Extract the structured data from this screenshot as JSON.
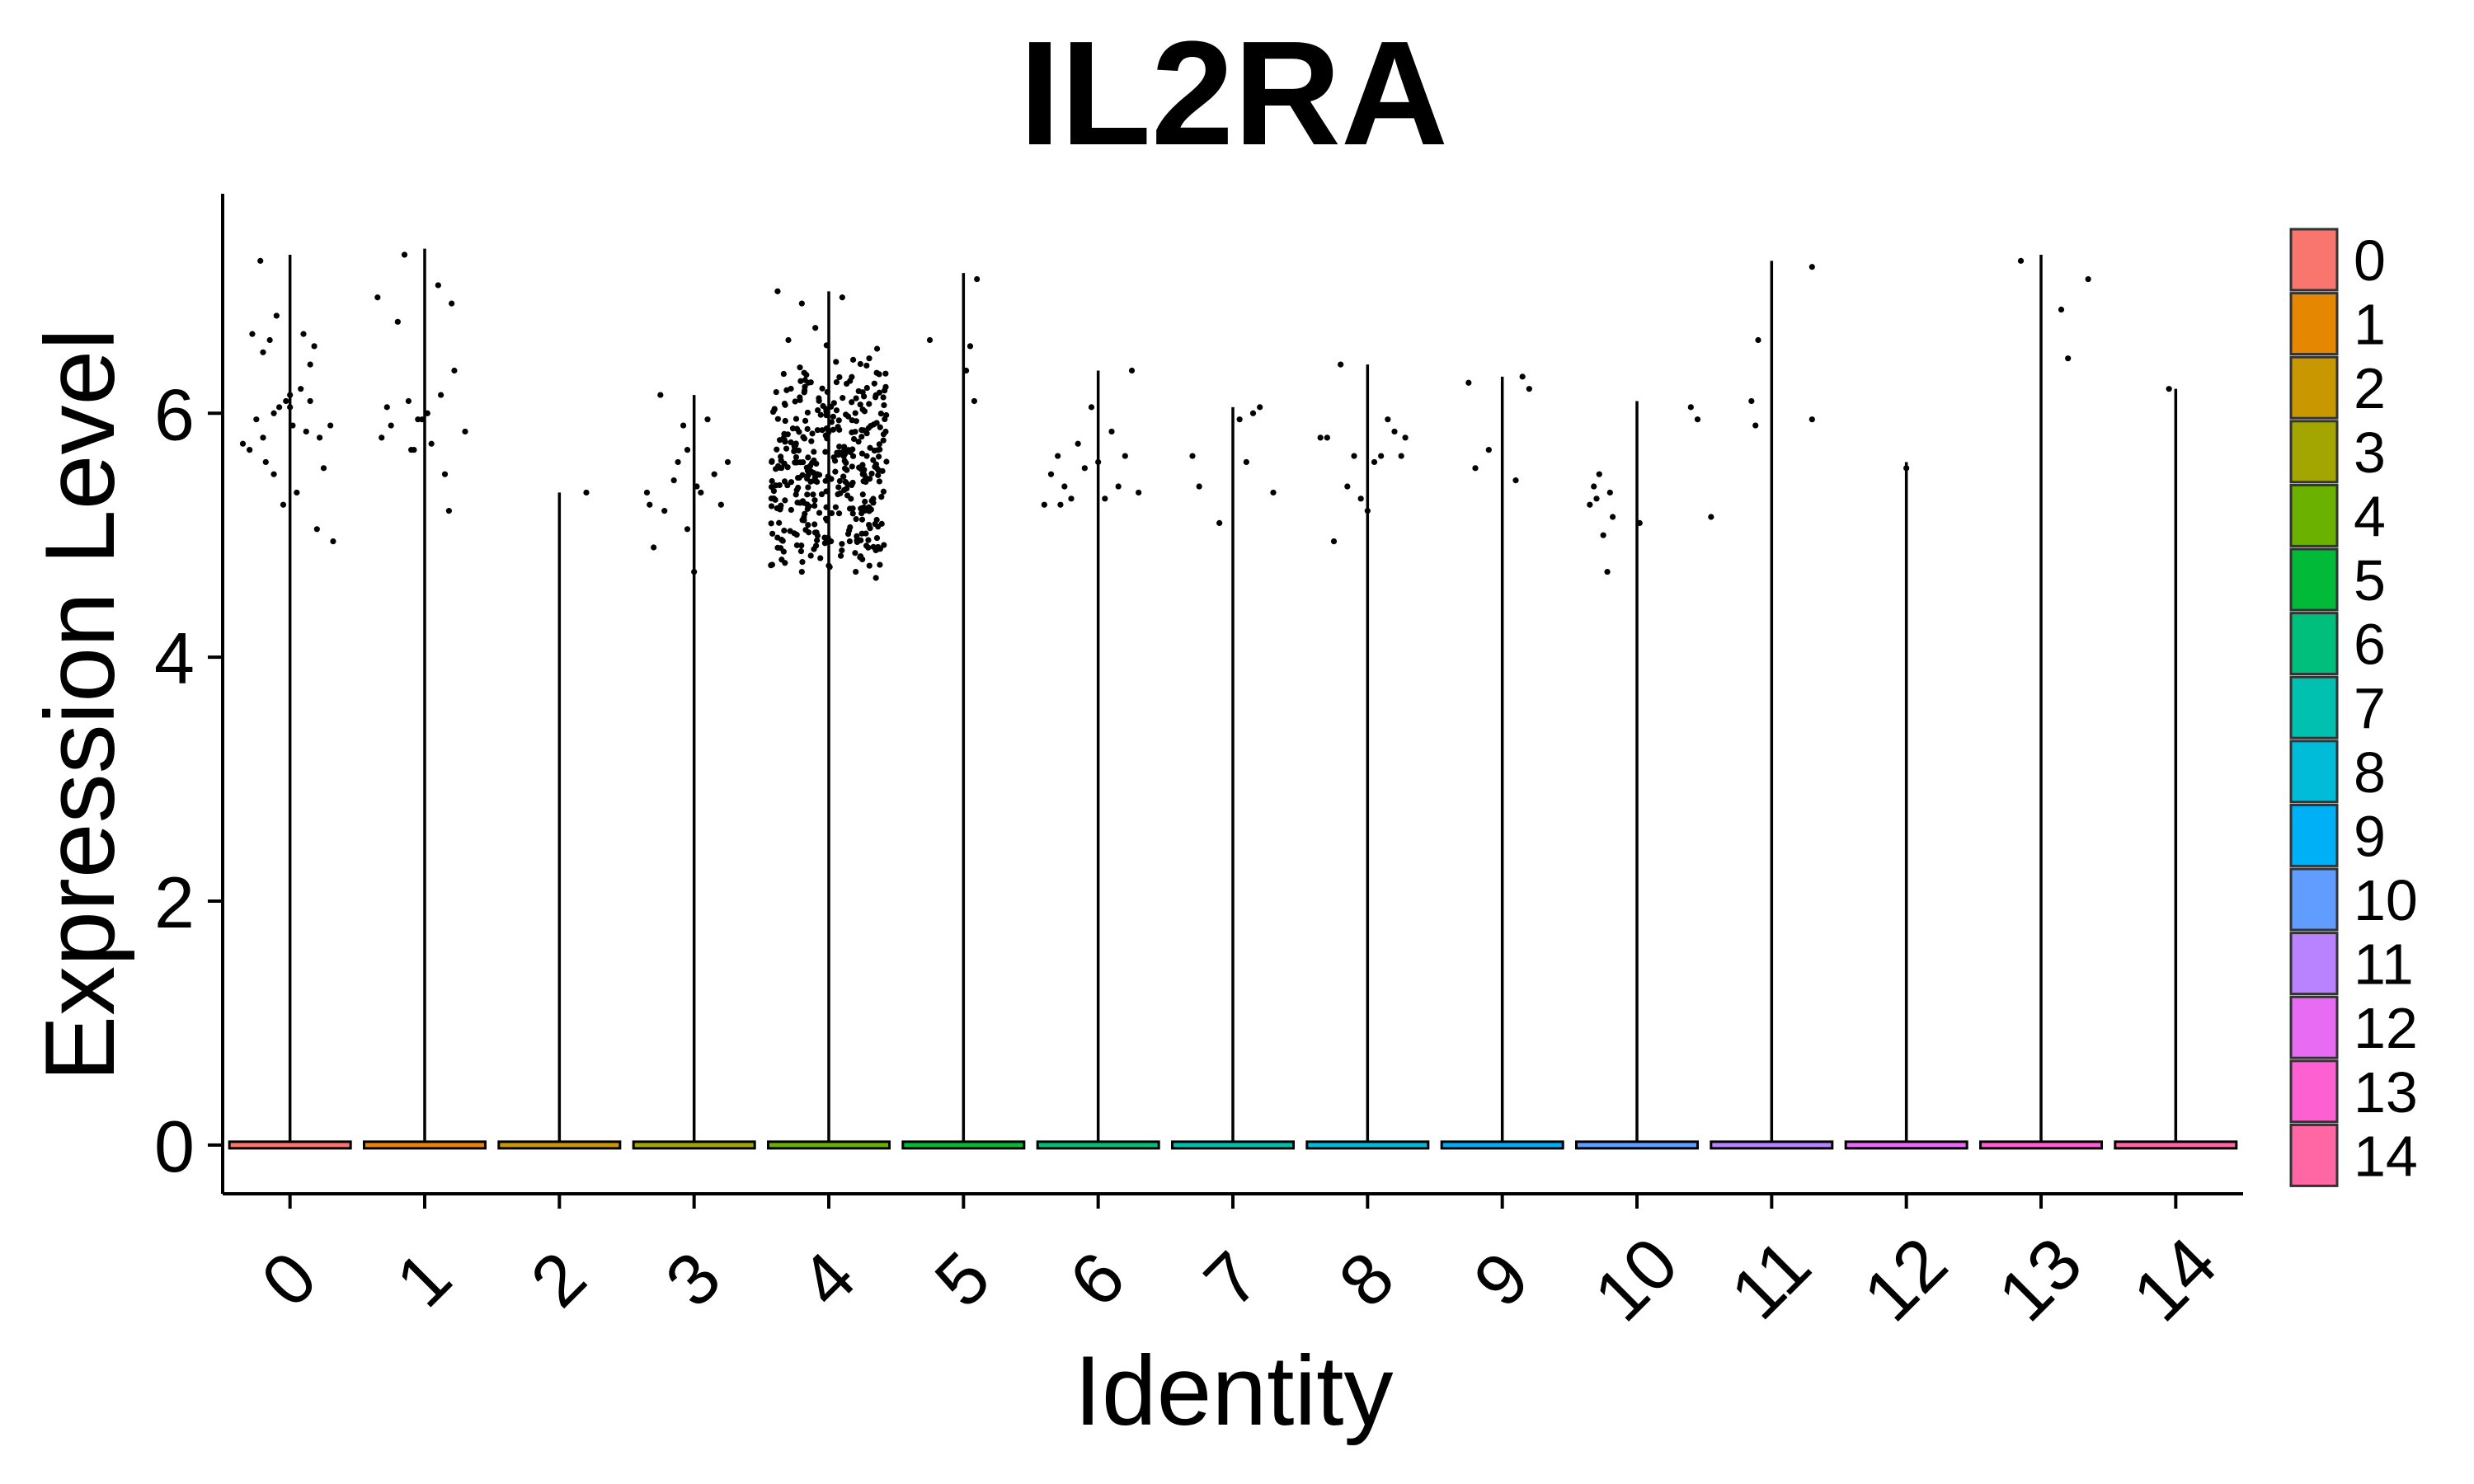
{
  "chart_data": {
    "type": "violin",
    "title": "IL2RA",
    "xlabel": "Identity",
    "ylabel": "Expression Level",
    "ylim": [
      -0.4,
      7.8
    ],
    "yticks": [
      0,
      2,
      4,
      6
    ],
    "categories": [
      "0",
      "1",
      "2",
      "3",
      "4",
      "5",
      "6",
      "7",
      "8",
      "9",
      "10",
      "11",
      "12",
      "13",
      "14"
    ],
    "colors": [
      "#F8766D",
      "#E58700",
      "#C99800",
      "#A3A500",
      "#6BB100",
      "#00BA38",
      "#00BF7D",
      "#00C0AF",
      "#00BCD8",
      "#00B0F6",
      "#619CFF",
      "#B983FF",
      "#E76BF3",
      "#FD61D1",
      "#FF67A4"
    ],
    "max_expression": [
      7.3,
      7.35,
      5.35,
      6.15,
      7.0,
      7.15,
      6.35,
      6.05,
      6.4,
      6.3,
      6.1,
      7.25,
      5.6,
      7.3,
      6.2
    ],
    "nonzero_points": [
      [
        [
          -0.35,
          5.75
        ],
        [
          -0.3,
          5.7
        ],
        [
          -0.28,
          6.65
        ],
        [
          -0.25,
          5.95
        ],
        [
          -0.22,
          7.25
        ],
        [
          -0.2,
          5.8
        ],
        [
          -0.18,
          5.6
        ],
        [
          -0.15,
          6.6
        ],
        [
          -0.12,
          5.5
        ],
        [
          -0.1,
          6.8
        ],
        [
          -0.08,
          6.05
        ],
        [
          -0.05,
          5.25
        ],
        [
          -0.03,
          6.1
        ],
        [
          0.0,
          6.05
        ],
        [
          0.02,
          5.9
        ],
        [
          0.05,
          5.35
        ],
        [
          0.08,
          6.2
        ],
        [
          0.1,
          6.65
        ],
        [
          0.12,
          5.85
        ],
        [
          0.15,
          6.1
        ],
        [
          0.18,
          6.55
        ],
        [
          0.2,
          5.05
        ],
        [
          0.22,
          5.8
        ],
        [
          0.25,
          5.55
        ],
        [
          0.3,
          5.9
        ],
        [
          0.32,
          4.95
        ],
        [
          -0.12,
          6.0
        ],
        [
          0.0,
          6.15
        ],
        [
          0.15,
          6.4
        ],
        [
          -0.2,
          6.5
        ]
      ],
      [
        [
          -0.35,
          6.95
        ],
        [
          -0.32,
          5.8
        ],
        [
          -0.28,
          6.05
        ],
        [
          -0.25,
          5.9
        ],
        [
          -0.2,
          6.75
        ],
        [
          -0.15,
          7.3
        ],
        [
          -0.12,
          6.1
        ],
        [
          -0.08,
          5.7
        ],
        [
          -0.05,
          5.95
        ],
        [
          -0.02,
          5.95
        ],
        [
          0.02,
          6.0
        ],
        [
          0.05,
          5.75
        ],
        [
          0.1,
          7.05
        ],
        [
          0.15,
          5.5
        ],
        [
          0.18,
          5.2
        ],
        [
          0.2,
          6.9
        ],
        [
          0.22,
          6.35
        ],
        [
          0.3,
          5.85
        ],
        [
          0.12,
          6.15
        ],
        [
          -0.1,
          5.7
        ]
      ],
      [
        [
          0.2,
          5.35
        ]
      ],
      [
        [
          -0.35,
          5.35
        ],
        [
          -0.33,
          5.25
        ],
        [
          -0.3,
          4.9
        ],
        [
          -0.25,
          6.15
        ],
        [
          -0.22,
          5.2
        ],
        [
          -0.15,
          5.45
        ],
        [
          -0.12,
          5.6
        ],
        [
          -0.08,
          5.9
        ],
        [
          -0.05,
          5.05
        ],
        [
          0.0,
          4.7
        ],
        [
          0.05,
          5.35
        ],
        [
          0.1,
          5.95
        ],
        [
          0.15,
          5.5
        ],
        [
          0.2,
          5.25
        ],
        [
          0.25,
          5.6
        ],
        [
          -0.05,
          5.7
        ],
        [
          0.02,
          5.4
        ]
      ],
      [
        [
          -0.38,
          7.0
        ],
        [
          -0.3,
          6.6
        ],
        [
          -0.2,
          6.9
        ],
        [
          -0.1,
          6.7
        ],
        [
          0.1,
          6.95
        ],
        [
          0.3,
          6.45
        ],
        [
          -0.35,
          4.8
        ],
        [
          -0.2,
          4.7
        ],
        [
          0.0,
          4.75
        ],
        [
          0.2,
          4.7
        ],
        [
          0.35,
          4.65
        ]
      ],
      [
        [
          -0.25,
          6.6
        ],
        [
          0.1,
          7.1
        ],
        [
          0.05,
          6.55
        ],
        [
          0.02,
          6.35
        ],
        [
          0.08,
          6.1
        ]
      ],
      [
        [
          -0.4,
          5.25
        ],
        [
          -0.35,
          5.5
        ],
        [
          -0.3,
          5.65
        ],
        [
          -0.25,
          5.4
        ],
        [
          -0.2,
          5.3
        ],
        [
          -0.15,
          5.75
        ],
        [
          -0.1,
          5.55
        ],
        [
          -0.05,
          6.05
        ],
        [
          0.0,
          5.6
        ],
        [
          0.05,
          5.3
        ],
        [
          0.1,
          5.85
        ],
        [
          0.15,
          5.4
        ],
        [
          0.2,
          5.65
        ],
        [
          0.25,
          6.35
        ],
        [
          0.3,
          5.35
        ],
        [
          -0.28,
          5.25
        ]
      ],
      [
        [
          -0.3,
          5.65
        ],
        [
          -0.25,
          5.4
        ],
        [
          -0.1,
          5.1
        ],
        [
          0.05,
          5.95
        ],
        [
          0.1,
          5.6
        ],
        [
          0.15,
          6.0
        ],
        [
          0.2,
          6.05
        ],
        [
          0.3,
          5.35
        ]
      ],
      [
        [
          -0.35,
          5.8
        ],
        [
          -0.3,
          5.8
        ],
        [
          -0.25,
          4.95
        ],
        [
          -0.2,
          6.4
        ],
        [
          -0.15,
          5.4
        ],
        [
          -0.1,
          5.65
        ],
        [
          -0.05,
          5.3
        ],
        [
          0.0,
          5.2
        ],
        [
          0.05,
          5.6
        ],
        [
          0.1,
          5.65
        ],
        [
          0.15,
          5.95
        ],
        [
          0.2,
          5.85
        ],
        [
          0.25,
          5.65
        ],
        [
          0.28,
          5.8
        ]
      ],
      [
        [
          -0.25,
          6.25
        ],
        [
          -0.2,
          5.55
        ],
        [
          -0.1,
          5.7
        ],
        [
          0.1,
          5.45
        ],
        [
          0.15,
          6.3
        ],
        [
          0.2,
          6.2
        ]
      ],
      [
        [
          -0.35,
          5.25
        ],
        [
          -0.32,
          5.4
        ],
        [
          -0.3,
          5.3
        ],
        [
          -0.28,
          5.5
        ],
        [
          -0.25,
          5.0
        ],
        [
          -0.22,
          4.7
        ],
        [
          -0.2,
          5.35
        ],
        [
          -0.18,
          5.15
        ],
        [
          0.02,
          5.1
        ],
        [
          0.4,
          6.05
        ],
        [
          0.45,
          5.95
        ],
        [
          0.55,
          5.15
        ]
      ],
      [
        [
          -0.1,
          6.6
        ],
        [
          -0.12,
          5.9
        ],
        [
          -0.15,
          6.1
        ],
        [
          0.3,
          5.95
        ],
        [
          0.3,
          7.2
        ]
      ],
      [
        [
          0.0,
          5.55
        ]
      ],
      [
        [
          -0.15,
          7.25
        ],
        [
          0.15,
          6.85
        ],
        [
          0.2,
          6.45
        ],
        [
          0.35,
          7.1
        ]
      ],
      [
        [
          -0.05,
          6.2
        ]
      ]
    ]
  }
}
